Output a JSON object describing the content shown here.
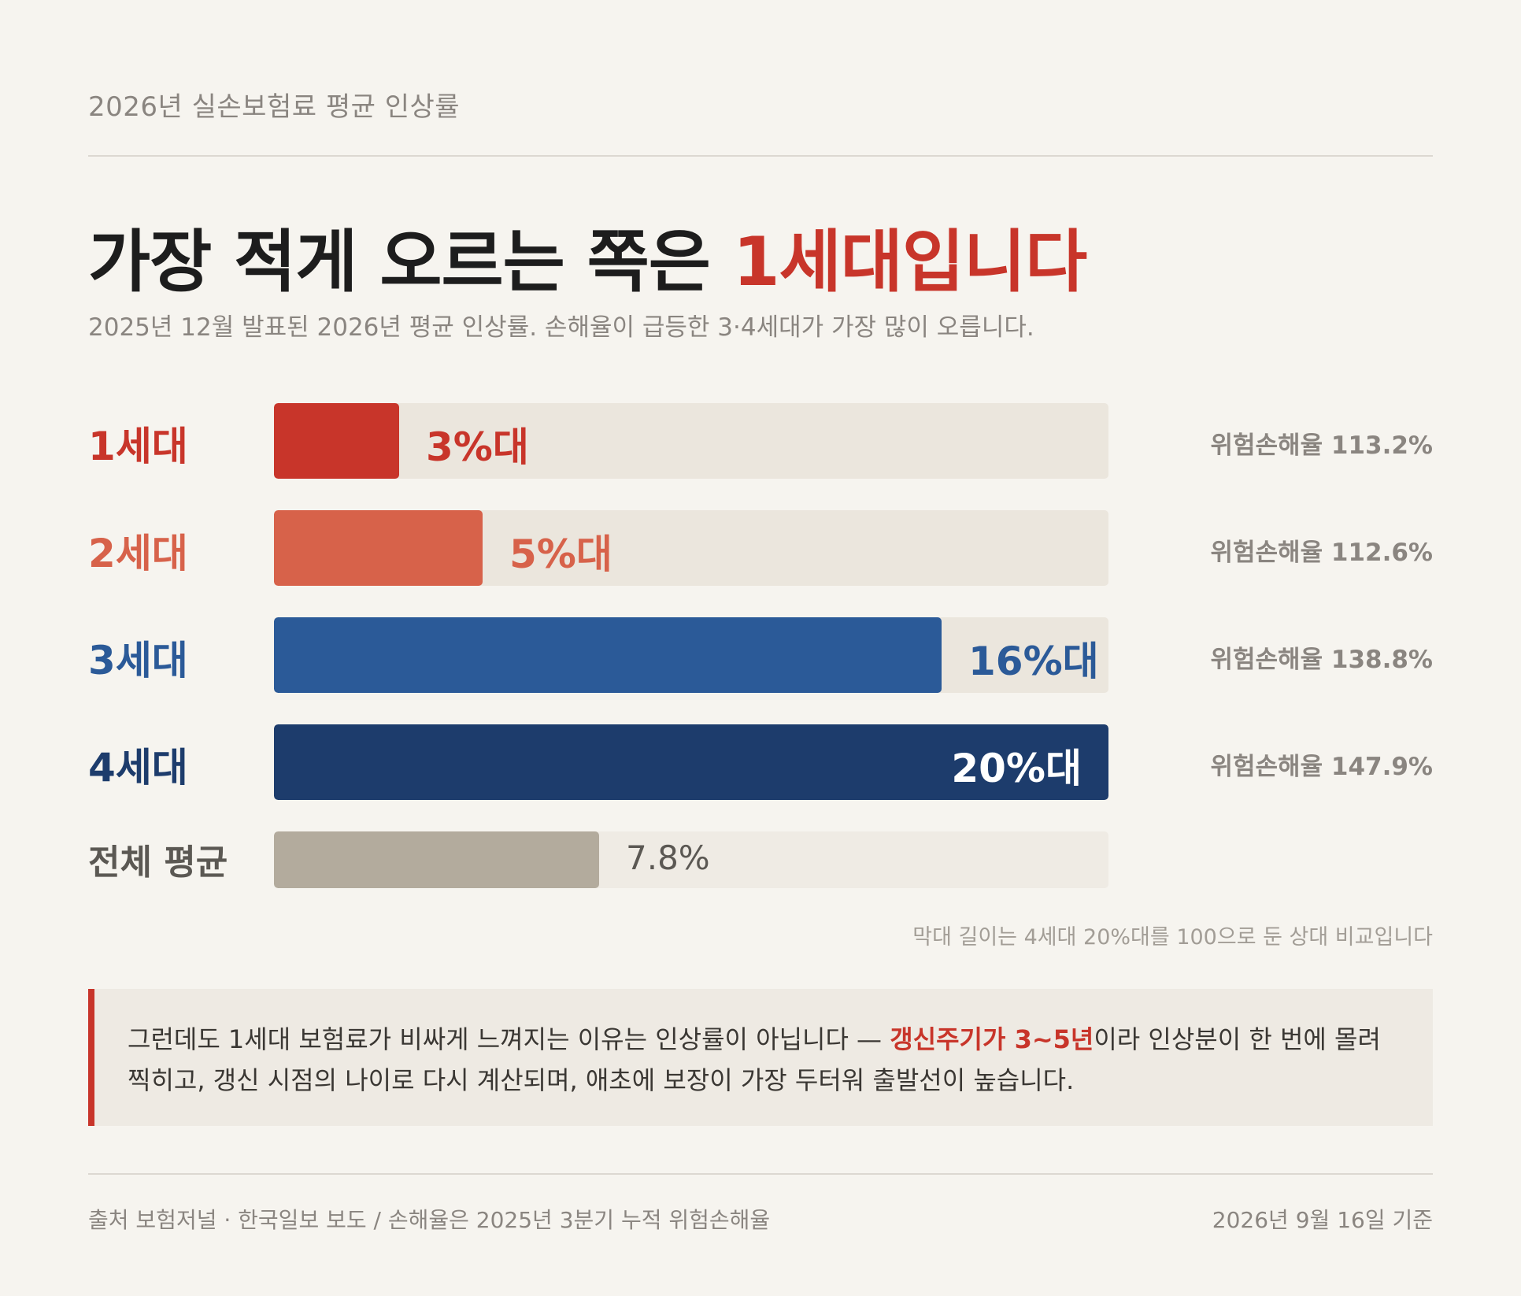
{
  "kicker": "2026년 실손보험료 평균 인상률",
  "headline": {
    "main": "가장 적게 오르는 쪽은 ",
    "highlight": "1세대입니다"
  },
  "subtitle": "2025년 12월 발표된 2026년 평균 인상률. 손해율이 급등한 3·4세대가 가장 많이 오릅니다.",
  "colors": {
    "gen1": "#c8352a",
    "gen2": "#d7624a",
    "gen3": "#2b5a98",
    "gen4": "#1d3c6c",
    "average": "#b3ab9d",
    "track": "#ebe6dd",
    "track_avg": "#efebe4"
  },
  "chart_data": {
    "type": "bar",
    "orientation": "horizontal",
    "categories": [
      "1세대",
      "2세대",
      "3세대",
      "4세대",
      "전체 평균"
    ],
    "values": [
      3,
      5,
      16,
      20,
      7.8
    ],
    "value_labels": [
      "3%대",
      "5%대",
      "16%대",
      "20%대",
      "7.8%"
    ],
    "reference_max": 20,
    "loss_ratio_prefix": "위험손해율",
    "loss_ratios": [
      "113.2%",
      "112.6%",
      "138.8%",
      "147.9%",
      ""
    ],
    "note": "막대 길이는 4세대 20%대를 100으로 둔 상대 비교입니다"
  },
  "callout": {
    "before": "그런데도 1세대 보험료가 비싸게 느껴지는 이유는 인상률이 아닙니다 — ",
    "emphasis": "갱신주기가 3~5년",
    "after": "이라 인상분이 한 번에 몰려 찍히고, 갱신 시점의 나이로 다시 계산되며, 애초에 보장이 가장 두터워 출발선이 높습니다."
  },
  "footer": {
    "source": "출처 보험저널 · 한국일보 보도 / 손해율은 2025년 3분기 누적 위험손해율",
    "date": "2026년 9월 16일 기준"
  }
}
